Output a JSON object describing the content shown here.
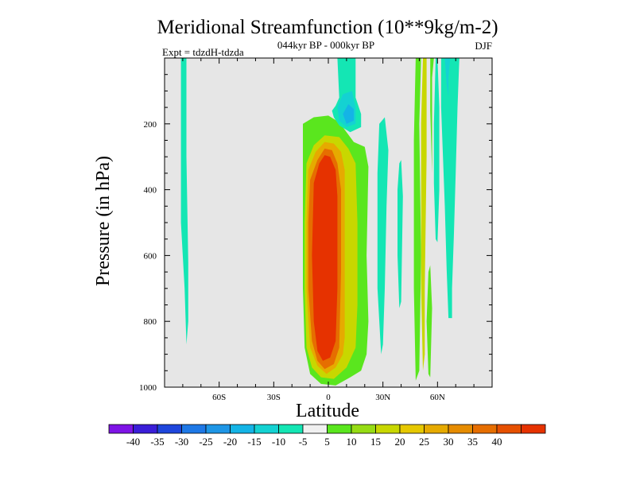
{
  "chart_data": {
    "type": "heatmap",
    "title": "Meridional Streamfunction (10**9kg/m-2)",
    "subtitle": "044kyr BP - 000kyr BP",
    "left_label": "Expt = tdzdH-tdzda",
    "right_label": "DJF",
    "xlabel": "Latitude",
    "ylabel": "Pressure (in hPa)",
    "xlim": [
      -90,
      90
    ],
    "ylim": [
      1000,
      0
    ],
    "x_ticks": [
      {
        "value": -60,
        "label": "60S"
      },
      {
        "value": -30,
        "label": "30S"
      },
      {
        "value": 0,
        "label": "0"
      },
      {
        "value": 30,
        "label": "30N"
      },
      {
        "value": 60,
        "label": "60N"
      }
    ],
    "y_ticks": [
      {
        "value": 200,
        "label": "200"
      },
      {
        "value": 400,
        "label": "400"
      },
      {
        "value": 600,
        "label": "600"
      },
      {
        "value": 800,
        "label": "800"
      },
      {
        "value": 1000,
        "label": "1000"
      }
    ],
    "background_color": "#e6e6e6",
    "colorbar": {
      "colors": [
        "#7e14e6",
        "#3a1ed8",
        "#1e46dc",
        "#1e78e6",
        "#1e96e6",
        "#14b4e6",
        "#14d2d2",
        "#14e6b4",
        "#f0f0f0",
        "#5ae61e",
        "#96dc14",
        "#c8d700",
        "#e6c800",
        "#e6aa00",
        "#e68c00",
        "#e66e00",
        "#e65000",
        "#e63200"
      ],
      "labels": [
        "-40",
        "-35",
        "-30",
        "-25",
        "-20",
        "-15",
        "-10",
        "-5",
        "5",
        "10",
        "15",
        "20",
        "25",
        "30",
        "35",
        "40"
      ]
    },
    "contour_regions": [
      {
        "name": "sh-polar-cell",
        "level": "-5",
        "color": "#14e6b4",
        "points": [
          [
            -80,
            0
          ],
          [
            -78,
            0
          ],
          [
            -78,
            300
          ],
          [
            -77,
            620
          ],
          [
            -77,
            800
          ],
          [
            -78,
            870
          ],
          [
            -79,
            700
          ],
          [
            -81,
            500
          ],
          [
            -81,
            200
          ],
          [
            -81,
            0
          ]
        ]
      },
      {
        "name": "equatorial-cell-outer",
        "level": "5",
        "color": "#5ae61e",
        "points": [
          [
            -14,
            200
          ],
          [
            -8,
            180
          ],
          [
            0,
            175
          ],
          [
            6,
            195
          ],
          [
            14,
            255
          ],
          [
            20,
            270
          ],
          [
            22,
            330
          ],
          [
            21,
            600
          ],
          [
            22,
            800
          ],
          [
            21,
            900
          ],
          [
            18,
            950
          ],
          [
            12,
            970
          ],
          [
            4,
            995
          ],
          [
            -4,
            990
          ],
          [
            -10,
            960
          ],
          [
            -13,
            880
          ],
          [
            -14,
            700
          ],
          [
            -14,
            400
          ]
        ]
      },
      {
        "name": "equatorial-cell-15",
        "level": "15",
        "color": "#c8d700",
        "points": [
          [
            -12,
            320
          ],
          [
            -8,
            265
          ],
          [
            -2,
            235
          ],
          [
            6,
            240
          ],
          [
            11,
            275
          ],
          [
            15,
            320
          ],
          [
            16,
            500
          ],
          [
            16,
            750
          ],
          [
            15,
            880
          ],
          [
            10,
            940
          ],
          [
            3,
            975
          ],
          [
            -4,
            970
          ],
          [
            -9,
            940
          ],
          [
            -12,
            880
          ],
          [
            -13,
            700
          ],
          [
            -13,
            500
          ]
        ]
      },
      {
        "name": "equatorial-cell-25",
        "level": "25",
        "color": "#e6aa00",
        "points": [
          [
            -11,
            340
          ],
          [
            -7,
            285
          ],
          [
            -2,
            255
          ],
          [
            3,
            260
          ],
          [
            7,
            285
          ],
          [
            9,
            340
          ],
          [
            9,
            600
          ],
          [
            9,
            850
          ],
          [
            8,
            900
          ],
          [
            4,
            940
          ],
          [
            -1,
            960
          ],
          [
            -6,
            935
          ],
          [
            -10,
            880
          ],
          [
            -12,
            700
          ],
          [
            -12,
            500
          ]
        ]
      },
      {
        "name": "equatorial-cell-35",
        "level": "35",
        "color": "#e66e00",
        "points": [
          [
            -10,
            370
          ],
          [
            -6,
            310
          ],
          [
            -2,
            275
          ],
          [
            2,
            280
          ],
          [
            5,
            320
          ],
          [
            7,
            400
          ],
          [
            7,
            650
          ],
          [
            6,
            880
          ],
          [
            3,
            930
          ],
          [
            -2,
            945
          ],
          [
            -6,
            920
          ],
          [
            -9,
            860
          ],
          [
            -11,
            700
          ],
          [
            -11,
            500
          ]
        ]
      },
      {
        "name": "equatorial-cell-core",
        "level": "40",
        "color": "#e63200",
        "points": [
          [
            -8,
            380
          ],
          [
            -5,
            320
          ],
          [
            -2,
            295
          ],
          [
            1,
            300
          ],
          [
            4,
            340
          ],
          [
            5,
            420
          ],
          [
            5,
            700
          ],
          [
            4,
            860
          ],
          [
            1,
            910
          ],
          [
            -3,
            920
          ],
          [
            -6,
            890
          ],
          [
            -8,
            800
          ],
          [
            -9,
            600
          ]
        ]
      },
      {
        "name": "nh-upper-cell",
        "level": "-5",
        "color": "#14e6b4",
        "points": [
          [
            5,
            0
          ],
          [
            15,
            0
          ],
          [
            15,
            120
          ],
          [
            18,
            170
          ],
          [
            18,
            210
          ],
          [
            12,
            225
          ],
          [
            6,
            205
          ],
          [
            3,
            180
          ],
          [
            2,
            160
          ],
          [
            4,
            145
          ],
          [
            6,
            120
          ]
        ]
      },
      {
        "name": "nh-upper-cell-10",
        "level": "-10",
        "color": "#14d2d2",
        "points": [
          [
            5,
            150
          ],
          [
            8,
            110
          ],
          [
            13,
            100
          ],
          [
            15,
            150
          ],
          [
            15,
            200
          ],
          [
            10,
            210
          ],
          [
            6,
            190
          ]
        ]
      },
      {
        "name": "nh-upper-cell-15",
        "level": "-15",
        "color": "#14b4e6",
        "points": [
          [
            8,
            170
          ],
          [
            11,
            140
          ],
          [
            14,
            155
          ],
          [
            14,
            190
          ],
          [
            10,
            200
          ]
        ]
      },
      {
        "name": "nh-tropics-band-a",
        "level": "-5",
        "color": "#14e6b4",
        "points": [
          [
            28,
            200
          ],
          [
            31,
            180
          ],
          [
            33,
            280
          ],
          [
            32,
            450
          ],
          [
            31,
            700
          ],
          [
            30,
            870
          ],
          [
            29,
            900
          ],
          [
            27,
            700
          ],
          [
            27,
            350
          ]
        ]
      },
      {
        "name": "nh-tropics-band-b",
        "level": "-5",
        "color": "#14e6b4",
        "points": [
          [
            39,
            320
          ],
          [
            40,
            310
          ],
          [
            41,
            420
          ],
          [
            40,
            740
          ],
          [
            39,
            760
          ],
          [
            38,
            600
          ],
          [
            38,
            400
          ]
        ]
      },
      {
        "name": "nh-midlat-band",
        "level": "5",
        "color": "#5ae61e",
        "points": [
          [
            48,
            0
          ],
          [
            51,
            0
          ],
          [
            50,
            200
          ],
          [
            51,
            600
          ],
          [
            50,
            950
          ],
          [
            48,
            980
          ],
          [
            47,
            700
          ],
          [
            47,
            250
          ]
        ]
      },
      {
        "name": "nh-midlat-band-15",
        "level": "15",
        "color": "#c8d700",
        "points": [
          [
            52,
            0
          ],
          [
            54,
            0
          ],
          [
            54,
            300
          ],
          [
            53,
            700
          ],
          [
            53,
            900
          ],
          [
            52,
            950
          ],
          [
            51,
            700
          ],
          [
            51,
            200
          ]
        ]
      },
      {
        "name": "nh-midlat-band-5b",
        "level": "5",
        "color": "#5ae61e",
        "points": [
          [
            56,
            0
          ],
          [
            58,
            0
          ],
          [
            57,
            60
          ],
          [
            57,
            350
          ],
          [
            56,
            160
          ]
        ]
      },
      {
        "name": "nh-midlat-band-5c",
        "level": "5",
        "color": "#5ae61e",
        "points": [
          [
            55,
            650
          ],
          [
            56,
            630
          ],
          [
            57,
            760
          ],
          [
            56,
            970
          ],
          [
            55,
            960
          ],
          [
            54,
            800
          ]
        ]
      },
      {
        "name": "nh-midlat-neg-a",
        "level": "-5",
        "color": "#14e6b4",
        "points": [
          [
            59,
            0
          ],
          [
            60,
            0
          ],
          [
            61,
            150
          ],
          [
            61,
            400
          ],
          [
            60,
            560
          ],
          [
            59,
            550
          ],
          [
            58,
            380
          ],
          [
            58,
            200
          ]
        ]
      },
      {
        "name": "nh-polar-cell",
        "level": "-5",
        "color": "#14e6b4",
        "points": [
          [
            62,
            0
          ],
          [
            72,
            0
          ],
          [
            71,
            150
          ],
          [
            70,
            350
          ],
          [
            69,
            540
          ],
          [
            68,
            700
          ],
          [
            68,
            790
          ],
          [
            66,
            790
          ],
          [
            65,
            640
          ],
          [
            64,
            450
          ],
          [
            63,
            300
          ],
          [
            62,
            150
          ]
        ]
      },
      {
        "name": "nh-polar-cell-10",
        "level": "-10",
        "color": "#14d2d2",
        "points": [
          [
            64,
            0
          ],
          [
            67,
            0
          ],
          [
            66,
            60
          ],
          [
            66,
            120
          ],
          [
            65,
            80
          ]
        ]
      }
    ]
  }
}
